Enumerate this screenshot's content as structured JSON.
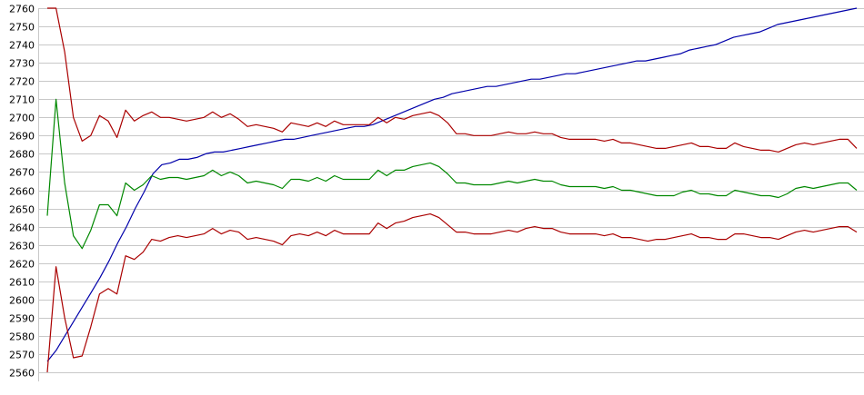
{
  "chart_data": {
    "type": "line",
    "title": "",
    "xlabel": "",
    "ylabel": "",
    "ylim": [
      2560,
      2760
    ],
    "y_ticks": [
      2760,
      2750,
      2740,
      2730,
      2720,
      2710,
      2700,
      2690,
      2680,
      2670,
      2660,
      2650,
      2640,
      2630,
      2620,
      2610,
      2600,
      2590,
      2580,
      2570,
      2560
    ],
    "x_tick_labels": [],
    "grid": "horizontal",
    "legend": "none",
    "series": [
      {
        "color": "#0000aa",
        "values": [
          2566,
          2572,
          2580,
          2588,
          2596,
          2604,
          2612,
          2621,
          2631,
          2640,
          2650,
          2659,
          2669,
          2674,
          2675,
          2677,
          2677,
          2678,
          2680,
          2681,
          2681,
          2682,
          2683,
          2684,
          2685,
          2686,
          2687,
          2688,
          2688,
          2689,
          2690,
          2691,
          2692,
          2693,
          2694,
          2695,
          2695,
          2696,
          2698,
          2700,
          2702,
          2704,
          2706,
          2708,
          2710,
          2711,
          2713,
          2714,
          2715,
          2716,
          2717,
          2717,
          2718,
          2719,
          2720,
          2721,
          2721,
          2722,
          2723,
          2724,
          2724,
          2725,
          2726,
          2727,
          2728,
          2729,
          2730,
          2731,
          2731,
          2732,
          2733,
          2734,
          2735,
          2737,
          2738,
          2739,
          2740,
          2742,
          2744,
          2745,
          2746,
          2747,
          2749,
          2751,
          2752,
          2753,
          2754,
          2755,
          2756,
          2757,
          2758,
          2759,
          2760
        ]
      },
      {
        "color": "#aa0000",
        "values": [
          2760,
          2760,
          2736,
          2700,
          2687,
          2690,
          2701,
          2698,
          2689,
          2704,
          2698,
          2701,
          2703,
          2700,
          2700,
          2699,
          2698,
          2699,
          2700,
          2703,
          2700,
          2702,
          2699,
          2695,
          2696,
          2695,
          2694,
          2692,
          2697,
          2696,
          2695,
          2697,
          2695,
          2698,
          2696,
          2696,
          2696,
          2696,
          2700,
          2697,
          2700,
          2699,
          2701,
          2702,
          2703,
          2701,
          2697,
          2691,
          2691,
          2690,
          2690,
          2690,
          2691,
          2692,
          2691,
          2691,
          2692,
          2691,
          2691,
          2689,
          2688,
          2688,
          2688,
          2688,
          2687,
          2688,
          2686,
          2686,
          2685,
          2684,
          2683,
          2683,
          2684,
          2685,
          2686,
          2684,
          2684,
          2683,
          2683,
          2686,
          2684,
          2683,
          2682,
          2682,
          2681,
          2683,
          2685,
          2686,
          2685,
          2686,
          2687,
          2688,
          2688,
          2683
        ]
      },
      {
        "color": "#008800",
        "values": [
          2646,
          2710,
          2664,
          2635,
          2628,
          2638,
          2652,
          2652,
          2646,
          2664,
          2660,
          2663,
          2668,
          2666,
          2667,
          2667,
          2666,
          2667,
          2668,
          2671,
          2668,
          2670,
          2668,
          2664,
          2665,
          2664,
          2663,
          2661,
          2666,
          2666,
          2665,
          2667,
          2665,
          2668,
          2666,
          2666,
          2666,
          2666,
          2671,
          2668,
          2671,
          2671,
          2673,
          2674,
          2675,
          2673,
          2669,
          2664,
          2664,
          2663,
          2663,
          2663,
          2664,
          2665,
          2664,
          2665,
          2666,
          2665,
          2665,
          2663,
          2662,
          2662,
          2662,
          2662,
          2661,
          2662,
          2660,
          2660,
          2659,
          2658,
          2657,
          2657,
          2657,
          2659,
          2660,
          2658,
          2658,
          2657,
          2657,
          2660,
          2659,
          2658,
          2657,
          2657,
          2656,
          2658,
          2661,
          2662,
          2661,
          2662,
          2663,
          2664,
          2664,
          2660
        ]
      },
      {
        "color": "#aa0000",
        "values": [
          2560,
          2618,
          2590,
          2568,
          2569,
          2585,
          2603,
          2606,
          2603,
          2624,
          2622,
          2626,
          2633,
          2632,
          2634,
          2635,
          2634,
          2635,
          2636,
          2639,
          2636,
          2638,
          2637,
          2633,
          2634,
          2633,
          2632,
          2630,
          2635,
          2636,
          2635,
          2637,
          2635,
          2638,
          2636,
          2636,
          2636,
          2636,
          2642,
          2639,
          2642,
          2643,
          2645,
          2646,
          2647,
          2645,
          2641,
          2637,
          2637,
          2636,
          2636,
          2636,
          2637,
          2638,
          2637,
          2639,
          2640,
          2639,
          2639,
          2637,
          2636,
          2636,
          2636,
          2636,
          2635,
          2636,
          2634,
          2634,
          2633,
          2632,
          2633,
          2633,
          2634,
          2635,
          2636,
          2634,
          2634,
          2633,
          2633,
          2636,
          2636,
          2635,
          2634,
          2634,
          2633,
          2635,
          2637,
          2638,
          2637,
          2638,
          2639,
          2640,
          2640,
          2637
        ]
      }
    ]
  }
}
